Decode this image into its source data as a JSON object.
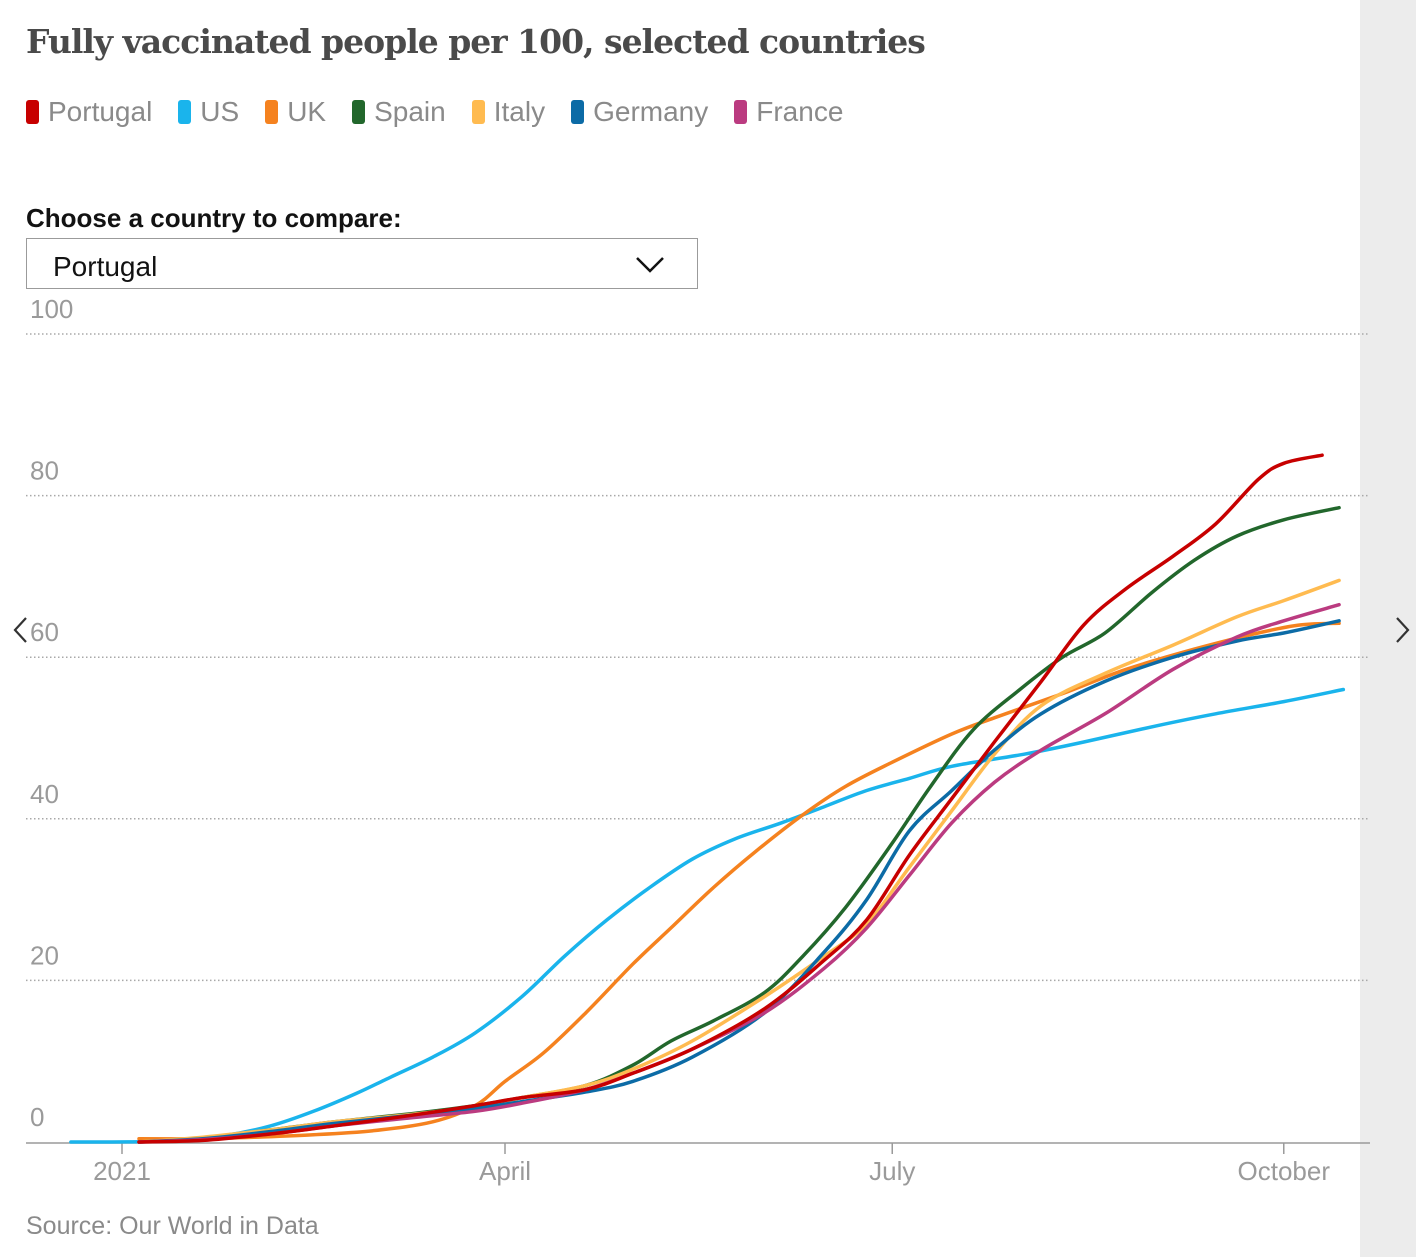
{
  "title": "Fully vaccinated people per 100, selected countries",
  "compare": {
    "label": "Choose a country to compare:",
    "selected": "Portugal"
  },
  "source": "Source: Our World in Data",
  "icons": {
    "dropdown": "chevron-down-icon",
    "prev": "chevron-left-icon",
    "next": "chevron-right-icon"
  },
  "chart_data": {
    "type": "line",
    "title": "Fully vaccinated people per 100, selected countries",
    "xlabel": "",
    "ylabel": "",
    "ylim": [
      0,
      100
    ],
    "yticks": [
      0,
      20,
      40,
      60,
      80,
      100
    ],
    "xlim": [
      "2020-12-20",
      "2021-10-20"
    ],
    "xticks": [
      {
        "label": "2021",
        "date": "2021-01-01"
      },
      {
        "label": "April",
        "date": "2021-04-01"
      },
      {
        "label": "July",
        "date": "2021-07-01"
      },
      {
        "label": "October",
        "date": "2021-10-01"
      }
    ],
    "grid": true,
    "legend_position": "top-left",
    "series": [
      {
        "name": "US",
        "color": "#1ab4ec",
        "points": [
          [
            "2020-12-20",
            0
          ],
          [
            "2021-01-10",
            0.1
          ],
          [
            "2021-01-25",
            0.8
          ],
          [
            "2021-02-05",
            2
          ],
          [
            "2021-02-15",
            3.8
          ],
          [
            "2021-02-25",
            6
          ],
          [
            "2021-03-05",
            8
          ],
          [
            "2021-03-15",
            10.5
          ],
          [
            "2021-03-25",
            13.5
          ],
          [
            "2021-04-05",
            18
          ],
          [
            "2021-04-15",
            23
          ],
          [
            "2021-04-25",
            27.5
          ],
          [
            "2021-05-05",
            31.5
          ],
          [
            "2021-05-15",
            35
          ],
          [
            "2021-05-25",
            37.5
          ],
          [
            "2021-06-05",
            39.5
          ],
          [
            "2021-06-15",
            41.5
          ],
          [
            "2021-06-25",
            43.5
          ],
          [
            "2021-07-05",
            45
          ],
          [
            "2021-07-15",
            46.5
          ],
          [
            "2021-08-01",
            48
          ],
          [
            "2021-08-15",
            49.5
          ],
          [
            "2021-09-01",
            51.5
          ],
          [
            "2021-09-15",
            53
          ],
          [
            "2021-10-01",
            54.5
          ],
          [
            "2021-10-15",
            56
          ]
        ]
      },
      {
        "name": "UK",
        "color": "#f5821f",
        "points": [
          [
            "2021-01-05",
            0.4
          ],
          [
            "2021-01-20",
            0.4
          ],
          [
            "2021-02-01",
            0.6
          ],
          [
            "2021-02-15",
            0.9
          ],
          [
            "2021-03-01",
            1.4
          ],
          [
            "2021-03-15",
            2.5
          ],
          [
            "2021-03-25",
            4.5
          ],
          [
            "2021-04-01",
            7.5
          ],
          [
            "2021-04-10",
            11
          ],
          [
            "2021-04-20",
            16
          ],
          [
            "2021-05-01",
            22
          ],
          [
            "2021-05-10",
            26.5
          ],
          [
            "2021-05-20",
            31.5
          ],
          [
            "2021-05-30",
            36
          ],
          [
            "2021-06-10",
            40.5
          ],
          [
            "2021-06-20",
            44
          ],
          [
            "2021-07-01",
            47
          ],
          [
            "2021-07-15",
            50.5
          ],
          [
            "2021-07-25",
            52.5
          ],
          [
            "2021-08-10",
            55.5
          ],
          [
            "2021-08-25",
            58.5
          ],
          [
            "2021-09-10",
            61
          ],
          [
            "2021-09-25",
            63
          ],
          [
            "2021-10-05",
            64
          ],
          [
            "2021-10-14",
            64.2
          ]
        ]
      },
      {
        "name": "Spain",
        "color": "#22672c",
        "points": [
          [
            "2021-01-05",
            0
          ],
          [
            "2021-01-20",
            0.5
          ],
          [
            "2021-02-05",
            1.5
          ],
          [
            "2021-02-20",
            2.5
          ],
          [
            "2021-03-10",
            3.5
          ],
          [
            "2021-03-25",
            4.5
          ],
          [
            "2021-04-05",
            5.5
          ],
          [
            "2021-04-20",
            7
          ],
          [
            "2021-05-01",
            9.5
          ],
          [
            "2021-05-10",
            12.5
          ],
          [
            "2021-05-20",
            15
          ],
          [
            "2021-06-01",
            18.5
          ],
          [
            "2021-06-10",
            23
          ],
          [
            "2021-06-20",
            29
          ],
          [
            "2021-07-01",
            37
          ],
          [
            "2021-07-10",
            44
          ],
          [
            "2021-07-20",
            51
          ],
          [
            "2021-07-31",
            56
          ],
          [
            "2021-08-10",
            60
          ],
          [
            "2021-08-20",
            63
          ],
          [
            "2021-08-31",
            68
          ],
          [
            "2021-09-10",
            72
          ],
          [
            "2021-09-20",
            75
          ],
          [
            "2021-10-01",
            77
          ],
          [
            "2021-10-14",
            78.5
          ]
        ]
      },
      {
        "name": "Italy",
        "color": "#ffbb50",
        "points": [
          [
            "2021-01-05",
            0
          ],
          [
            "2021-01-20",
            0.6
          ],
          [
            "2021-02-05",
            1.5
          ],
          [
            "2021-02-20",
            2.5
          ],
          [
            "2021-03-10",
            3.4
          ],
          [
            "2021-03-25",
            4.4
          ],
          [
            "2021-04-05",
            5.5
          ],
          [
            "2021-04-20",
            7
          ],
          [
            "2021-05-01",
            9
          ],
          [
            "2021-05-15",
            12.5
          ],
          [
            "2021-06-01",
            18
          ],
          [
            "2021-06-15",
            23
          ],
          [
            "2021-06-25",
            27
          ],
          [
            "2021-07-05",
            34
          ],
          [
            "2021-07-15",
            41
          ],
          [
            "2021-07-25",
            48
          ],
          [
            "2021-08-05",
            54
          ],
          [
            "2021-08-20",
            58
          ],
          [
            "2021-09-05",
            61.5
          ],
          [
            "2021-09-20",
            65
          ],
          [
            "2021-10-01",
            67
          ],
          [
            "2021-10-14",
            69.5
          ]
        ]
      },
      {
        "name": "Germany",
        "color": "#0c6ba6",
        "points": [
          [
            "2021-01-05",
            0
          ],
          [
            "2021-01-20",
            0.4
          ],
          [
            "2021-02-05",
            1.3
          ],
          [
            "2021-02-20",
            2.3
          ],
          [
            "2021-03-10",
            3.3
          ],
          [
            "2021-03-25",
            4.2
          ],
          [
            "2021-04-05",
            5
          ],
          [
            "2021-04-20",
            6.2
          ],
          [
            "2021-05-01",
            7.5
          ],
          [
            "2021-05-15",
            10.5
          ],
          [
            "2021-06-01",
            16
          ],
          [
            "2021-06-15",
            23.5
          ],
          [
            "2021-06-25",
            30
          ],
          [
            "2021-07-05",
            38.5
          ],
          [
            "2021-07-15",
            43.5
          ],
          [
            "2021-07-25",
            48.5
          ],
          [
            "2021-08-05",
            53
          ],
          [
            "2021-08-20",
            57
          ],
          [
            "2021-09-05",
            60
          ],
          [
            "2021-09-20",
            62
          ],
          [
            "2021-10-01",
            63
          ],
          [
            "2021-10-14",
            64.5
          ]
        ]
      },
      {
        "name": "France",
        "color": "#bb3b80",
        "points": [
          [
            "2021-01-05",
            0
          ],
          [
            "2021-01-20",
            0.3
          ],
          [
            "2021-02-05",
            1
          ],
          [
            "2021-02-20",
            2
          ],
          [
            "2021-03-10",
            3
          ],
          [
            "2021-03-25",
            3.8
          ],
          [
            "2021-04-05",
            4.8
          ],
          [
            "2021-04-20",
            6.5
          ],
          [
            "2021-05-01",
            8.5
          ],
          [
            "2021-05-15",
            11.5
          ],
          [
            "2021-06-01",
            16
          ],
          [
            "2021-06-15",
            21.5
          ],
          [
            "2021-06-25",
            26.5
          ],
          [
            "2021-07-05",
            33
          ],
          [
            "2021-07-15",
            39.5
          ],
          [
            "2021-07-25",
            44.5
          ],
          [
            "2021-08-05",
            48.5
          ],
          [
            "2021-08-20",
            53
          ],
          [
            "2021-09-05",
            58.5
          ],
          [
            "2021-09-20",
            62.5
          ],
          [
            "2021-10-01",
            64.5
          ],
          [
            "2021-10-14",
            66.5
          ]
        ]
      },
      {
        "name": "Portugal",
        "color": "#c70000",
        "points": [
          [
            "2021-01-05",
            0
          ],
          [
            "2021-01-20",
            0.2
          ],
          [
            "2021-02-05",
            1
          ],
          [
            "2021-02-20",
            2
          ],
          [
            "2021-03-10",
            3.3
          ],
          [
            "2021-03-25",
            4.5
          ],
          [
            "2021-04-05",
            5.5
          ],
          [
            "2021-04-20",
            6.5
          ],
          [
            "2021-05-01",
            8.5
          ],
          [
            "2021-05-15",
            11.5
          ],
          [
            "2021-06-01",
            16.5
          ],
          [
            "2021-06-15",
            22.5
          ],
          [
            "2021-06-25",
            27.5
          ],
          [
            "2021-07-05",
            35.5
          ],
          [
            "2021-07-15",
            42.5
          ],
          [
            "2021-07-25",
            49.5
          ],
          [
            "2021-08-05",
            57
          ],
          [
            "2021-08-15",
            64
          ],
          [
            "2021-08-25",
            68.5
          ],
          [
            "2021-09-05",
            72.5
          ],
          [
            "2021-09-15",
            76.5
          ],
          [
            "2021-09-25",
            82
          ],
          [
            "2021-10-01",
            84
          ],
          [
            "2021-10-10",
            85
          ]
        ]
      }
    ]
  }
}
